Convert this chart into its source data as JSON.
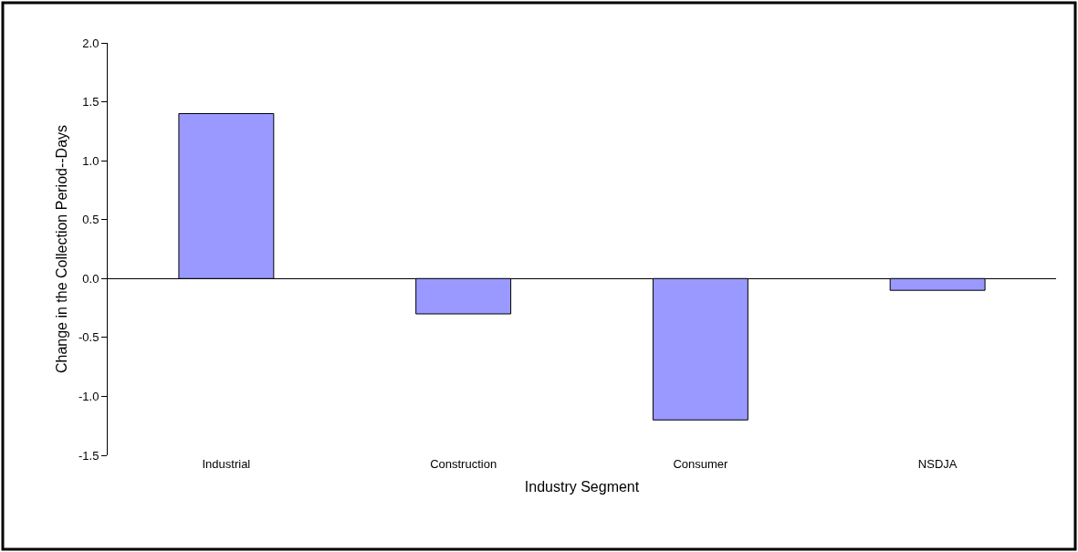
{
  "chart_data": {
    "type": "bar",
    "xlabel": "Industry Segment",
    "ylabel": "Change in the Collection Period--Days",
    "categories": [
      "Industrial",
      "Construction",
      "Consumer",
      "NSDJA"
    ],
    "values": [
      1.4,
      -0.3,
      -1.2,
      -0.1
    ],
    "color": "#9999ff",
    "ylim": [
      -1.5,
      2.0
    ],
    "yticks": [
      {
        "value": -1.5,
        "label": "-1.5"
      },
      {
        "value": -1.0,
        "label": "-1.0"
      },
      {
        "value": -0.5,
        "label": "-0.5"
      },
      {
        "value": 0,
        "label": "0.0"
      },
      {
        "value": 0.5,
        "label": "0.5"
      },
      {
        "value": 1.0,
        "label": "1.0"
      },
      {
        "value": 1.5,
        "label": "1.5"
      },
      {
        "value": 2.0,
        "label": "2.0"
      }
    ]
  }
}
